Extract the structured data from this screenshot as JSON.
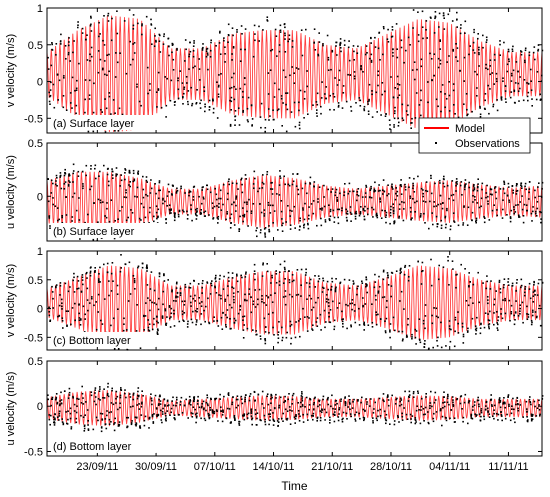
{
  "chart_data": [
    {
      "type": "line",
      "panel": "(a) Surface layer",
      "ylabel": "v velocity (m/s)",
      "ylim": [
        -0.7,
        1.0
      ],
      "yticks": [
        -0.5,
        0,
        0.5,
        1
      ],
      "ytick_labels": [
        "-0.5",
        "0",
        "0.5",
        "1"
      ],
      "series": [
        {
          "name": "Model",
          "style": "line",
          "color": "#ff0000",
          "amplitude_envelope": [
            0.3,
            0.6,
            0.8,
            0.75,
            0.35,
            0.35,
            0.55,
            0.6,
            0.6,
            0.4,
            0.35,
            0.55,
            0.75,
            0.7,
            0.45,
            0.3,
            0.3
          ],
          "mean": 0.1
        },
        {
          "name": "Observations",
          "style": "dots",
          "color": "#000000"
        }
      ],
      "legend": {
        "placement": "bottom-right",
        "entries": [
          "Model",
          "Observations"
        ]
      }
    },
    {
      "type": "line",
      "panel": "(b) Surface layer",
      "ylabel": "u velocity (m/s)",
      "ylim": [
        -0.42,
        0.5
      ],
      "yticks": [
        0,
        0.5
      ],
      "ytick_labels": [
        "0",
        "0.5"
      ],
      "series": [
        {
          "name": "Model",
          "style": "line",
          "color": "#ff0000",
          "amplitude_envelope": [
            0.2,
            0.28,
            0.28,
            0.22,
            0.12,
            0.12,
            0.2,
            0.25,
            0.22,
            0.15,
            0.12,
            0.15,
            0.18,
            0.2,
            0.16,
            0.13,
            0.15
          ],
          "mean": -0.05
        },
        {
          "name": "Observations",
          "style": "dots",
          "color": "#000000"
        }
      ]
    },
    {
      "type": "line",
      "panel": "(c) Bottom layer",
      "ylabel": "v velocity (m/s)",
      "ylim": [
        -0.72,
        1.0
      ],
      "yticks": [
        -0.5,
        0,
        0.5,
        1
      ],
      "ytick_labels": [
        "-0.5",
        "0",
        "0.5",
        "1"
      ],
      "series": [
        {
          "name": "Model",
          "style": "line",
          "color": "#ff0000",
          "amplitude_envelope": [
            0.25,
            0.45,
            0.65,
            0.6,
            0.3,
            0.3,
            0.45,
            0.55,
            0.55,
            0.35,
            0.3,
            0.45,
            0.65,
            0.6,
            0.4,
            0.3,
            0.3
          ],
          "mean": 0.1
        },
        {
          "name": "Observations",
          "style": "dots",
          "color": "#000000"
        }
      ]
    },
    {
      "type": "line",
      "panel": "(d) Bottom layer",
      "ylabel": "u velocity (m/s)",
      "ylim": [
        -0.55,
        0.5
      ],
      "yticks": [
        -0.5,
        0,
        0.5
      ],
      "ytick_labels": [
        "-0.5",
        "0",
        "0.5"
      ],
      "series": [
        {
          "name": "Model",
          "style": "line",
          "color": "#ff0000",
          "amplitude_envelope": [
            0.12,
            0.18,
            0.2,
            0.16,
            0.08,
            0.1,
            0.12,
            0.14,
            0.13,
            0.1,
            0.1,
            0.12,
            0.14,
            0.13,
            0.1,
            0.1,
            0.1
          ],
          "mean": -0.02
        },
        {
          "name": "Observations",
          "style": "dots",
          "color": "#000000"
        }
      ]
    }
  ],
  "x_axis": {
    "label": "Time",
    "range": [
      "2011-09-17",
      "2011-11-15"
    ],
    "tick_dates": [
      "2011-09-23",
      "2011-09-30",
      "2011-10-07",
      "2011-10-14",
      "2011-10-21",
      "2011-10-28",
      "2011-11-04",
      "2011-11-11"
    ],
    "tick_labels": [
      "23/09/11",
      "30/09/11",
      "07/10/11",
      "14/10/11",
      "21/10/11",
      "28/10/11",
      "04/11/11",
      "11/11/11"
    ]
  },
  "legend_labels": {
    "model": "Model",
    "obs": "Observations"
  },
  "colors": {
    "model": "#ff0000",
    "observations": "#000000"
  }
}
